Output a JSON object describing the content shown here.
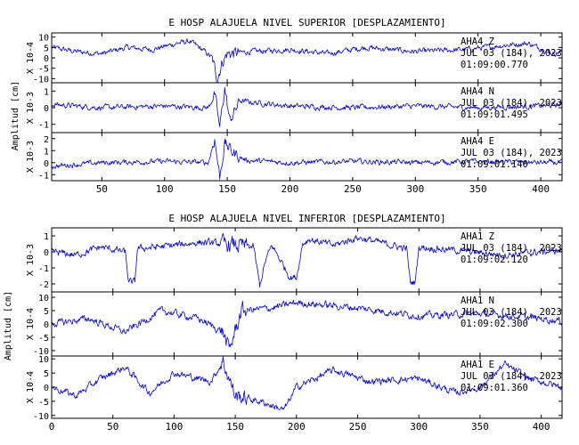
{
  "colors": {
    "trace": "#0000ee",
    "axes": "#000000",
    "background": "#ffffff"
  },
  "chart_data": [
    {
      "type": "line",
      "title": "E HOSP ALAJUELA NIVEL SUPERIOR [DESPLAZAMIENTO]",
      "ylabel": "Amplitud [cm]",
      "xlim": [
        10,
        417
      ],
      "xticks": [
        50,
        100,
        150,
        200,
        250,
        300,
        350,
        400
      ],
      "grid": false,
      "panels": [
        {
          "station": "AHA4",
          "component": "Z",
          "date": "JUL 03 (184), 2023",
          "time": "01:09:00.770",
          "scale_label": "X 10-4",
          "ylim": [
            -12,
            12
          ],
          "yticks": [
            -10,
            -5,
            0,
            5,
            10
          ],
          "series": [
            {
              "x": [
                10,
                30,
                50,
                70,
                90,
                110,
                120,
                130,
                138,
                142,
                146,
                150,
                170,
                200,
                230,
                260,
                300,
                340,
                370,
                390,
                410,
                417
              ],
              "y": [
                5,
                3,
                2,
                5,
                4,
                7,
                8,
                4,
                0,
                -10,
                -2,
                2,
                3,
                4,
                2,
                5,
                3,
                4,
                6,
                7,
                2,
                3
              ]
            }
          ]
        },
        {
          "station": "AHA4",
          "component": "N",
          "date": "JUL 03 (184), 2023",
          "time": "01:09:01.495",
          "scale_label": "X 10-3",
          "ylim": [
            -1.5,
            1.5
          ],
          "yticks": [
            -1,
            0,
            1
          ],
          "series": [
            {
              "x": [
                10,
                50,
                100,
                135,
                140,
                144,
                148,
                152,
                160,
                200,
                250,
                300,
                350,
                400,
                417
              ],
              "y": [
                0.2,
                0,
                0.1,
                0,
                0.8,
                -1.2,
                1.2,
                -0.8,
                0.4,
                0.1,
                0,
                0.1,
                0,
                0.1,
                0.2
              ]
            }
          ]
        },
        {
          "station": "AHA4",
          "component": "E",
          "date": "JUL 03 (184), 2023",
          "time": "01:09:01.140",
          "scale_label": "X 10-3",
          "ylim": [
            -1.5,
            2.5
          ],
          "yticks": [
            -1,
            0,
            1,
            2
          ],
          "series": [
            {
              "x": [
                10,
                50,
                100,
                135,
                140,
                144,
                148,
                155,
                165,
                200,
                250,
                300,
                350,
                400,
                417
              ],
              "y": [
                -0.3,
                0,
                0.1,
                0,
                2,
                -1.2,
                1.6,
                0.8,
                0.2,
                0,
                0.1,
                0,
                0.1,
                0,
                0
              ]
            }
          ]
        }
      ]
    },
    {
      "type": "line",
      "title": "E HOSP ALAJUELA NIVEL INFERIOR [DESPLAZAMIENTO]",
      "ylabel": "Amplitud [cm]",
      "xlim": [
        0,
        417
      ],
      "xticks": [
        0,
        50,
        100,
        150,
        200,
        250,
        300,
        350,
        400
      ],
      "grid": false,
      "panels": [
        {
          "station": "AHA1",
          "component": "Z",
          "date": "JUL 03 (184), 2023",
          "time": "01:09:02.120",
          "scale_label": "X 10-3",
          "ylim": [
            -2.5,
            1.5
          ],
          "yticks": [
            -2,
            -1,
            0,
            1
          ],
          "series": [
            {
              "x": [
                0,
                20,
                40,
                60,
                63,
                68,
                70,
                100,
                120,
                140,
                165,
                170,
                175,
                180,
                195,
                200,
                205,
                210,
                230,
                250,
                290,
                293,
                297,
                300,
                330,
                370,
                400,
                417
              ],
              "y": [
                0,
                -0.2,
                0.3,
                0,
                -1.9,
                -1.9,
                0.2,
                0.4,
                0.6,
                0.5,
                0.3,
                -2.1,
                -0.5,
                0.4,
                -1.6,
                -1.6,
                0.5,
                0.8,
                0.4,
                0.9,
                0.2,
                -1.9,
                -1.9,
                0.3,
                0.1,
                -0.2,
                0,
                0.1
              ]
            }
          ]
        },
        {
          "station": "AHA1",
          "component": "N",
          "date": "JUL 03 (184), 2023",
          "time": "01:09:02.300",
          "scale_label": "X 10-4",
          "ylim": [
            -12,
            12
          ],
          "yticks": [
            -10,
            -5,
            0,
            5,
            10
          ],
          "series": [
            {
              "x": [
                0,
                30,
                60,
                90,
                120,
                140,
                145,
                155,
                180,
                200,
                250,
                300,
                350,
                400,
                417
              ],
              "y": [
                0,
                2,
                -3,
                5,
                2,
                -3,
                -10,
                5,
                6,
                8,
                6,
                3,
                4,
                2,
                1
              ]
            }
          ]
        },
        {
          "station": "AHA1",
          "component": "E",
          "date": "JUL 03 (184), 2023",
          "time": "01:09:01.360",
          "scale_label": "X 10-4",
          "ylim": [
            -11,
            11
          ],
          "yticks": [
            -10,
            -5,
            0,
            5,
            10
          ],
          "series": [
            {
              "x": [
                0,
                20,
                40,
                60,
                80,
                100,
                130,
                140,
                150,
                170,
                190,
                200,
                230,
                260,
                300,
                330,
                350,
                370,
                390,
                417
              ],
              "y": [
                0,
                -3,
                3,
                7,
                -2,
                5,
                2,
                9,
                -3,
                -5,
                -8,
                0,
                6,
                2,
                3,
                -2,
                0,
                8,
                3,
                0
              ]
            }
          ]
        }
      ]
    }
  ]
}
